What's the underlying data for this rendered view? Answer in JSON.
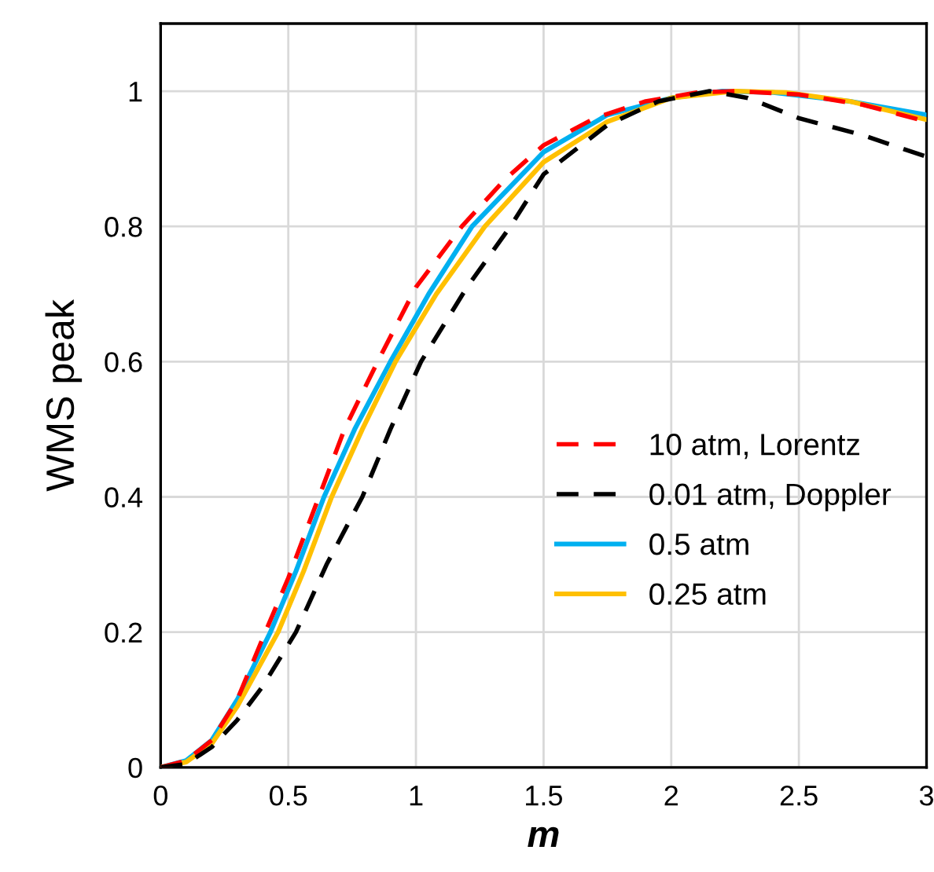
{
  "chart_data": {
    "type": "line",
    "xlabel": "m",
    "ylabel": "WMS peak",
    "xlim": [
      0,
      3
    ],
    "xticks": [
      0,
      0.5,
      1,
      1.5,
      2,
      2.5,
      3
    ],
    "ylim": [
      0,
      1.1
    ],
    "yticks": [
      0,
      0.2,
      0.4,
      0.6,
      0.8,
      1
    ],
    "grid": true,
    "legend": "right",
    "series": [
      {
        "name": "10 atm, Lorentz",
        "color": "#ff0000",
        "line_style": "dashed",
        "x": [
          0,
          0.1,
          0.2,
          0.3,
          0.41,
          0.5,
          0.62,
          0.72,
          0.85,
          1.0,
          1.18,
          1.35,
          1.5,
          1.7,
          1.9,
          2.1,
          2.25,
          2.5,
          2.75,
          3.0
        ],
        "values": [
          0,
          0.01,
          0.04,
          0.1,
          0.2,
          0.28,
          0.4,
          0.5,
          0.6,
          0.71,
          0.8,
          0.87,
          0.92,
          0.96,
          0.985,
          0.998,
          1.0,
          0.995,
          0.98,
          0.955
        ]
      },
      {
        "name": "0.01 atm, Doppler",
        "color": "#000000",
        "line_style": "dashed",
        "x": [
          0,
          0.1,
          0.2,
          0.3,
          0.4,
          0.53,
          0.65,
          0.79,
          0.9,
          1.02,
          1.2,
          1.37,
          1.5,
          1.75,
          1.95,
          2.15,
          2.3,
          2.5,
          2.75,
          3.0
        ],
        "values": [
          0,
          0.005,
          0.03,
          0.07,
          0.12,
          0.2,
          0.3,
          0.4,
          0.5,
          0.6,
          0.71,
          0.8,
          0.877,
          0.95,
          0.985,
          1.0,
          0.99,
          0.96,
          0.935,
          0.903
        ]
      },
      {
        "name": "0.5 atm",
        "color": "#00b0f0",
        "line_style": "solid",
        "x": [
          0,
          0.1,
          0.2,
          0.3,
          0.43,
          0.53,
          0.64,
          0.76,
          0.9,
          1.05,
          1.22,
          1.5,
          1.75,
          2.0,
          2.2,
          2.4,
          2.7,
          3.0
        ],
        "values": [
          0,
          0.01,
          0.04,
          0.1,
          0.2,
          0.29,
          0.4,
          0.5,
          0.6,
          0.7,
          0.8,
          0.91,
          0.965,
          0.99,
          1.0,
          0.998,
          0.985,
          0.965
        ]
      },
      {
        "name": "0.25 atm",
        "color": "#ffc000",
        "line_style": "solid",
        "x": [
          0,
          0.1,
          0.2,
          0.3,
          0.46,
          0.56,
          0.67,
          0.79,
          0.92,
          1.08,
          1.27,
          1.5,
          1.75,
          2.0,
          2.25,
          2.45,
          2.7,
          3.0
        ],
        "values": [
          0,
          0.008,
          0.035,
          0.09,
          0.2,
          0.29,
          0.4,
          0.5,
          0.6,
          0.7,
          0.8,
          0.895,
          0.955,
          0.99,
          1.0,
          0.998,
          0.985,
          0.958
        ]
      }
    ]
  }
}
